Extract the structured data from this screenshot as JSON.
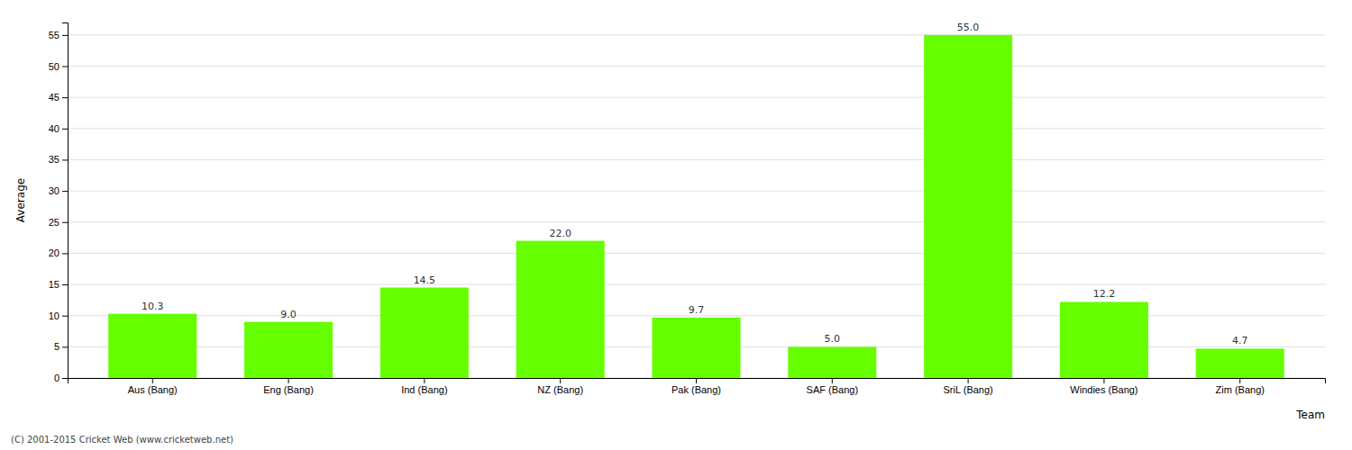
{
  "chart_data": {
    "type": "bar",
    "x_label": "Team",
    "y_label": "Average",
    "annotations": [
      "(C) 2001-2015 Cricket Web (www.cricketweb.net)"
    ],
    "categories": [
      "Aus (Bang)",
      "Eng (Bang)",
      "Ind (Bang)",
      "NZ (Bang)",
      "Pak (Bang)",
      "SAF (Bang)",
      "SriL (Bang)",
      "Windies (Bang)",
      "Zim (Bang)"
    ],
    "values": [
      10.3,
      9.0,
      14.5,
      22.0,
      9.7,
      5.0,
      55.0,
      12.2,
      4.7
    ],
    "value_labels": [
      "10.3",
      "9.0",
      "14.5",
      "22.0",
      "9.7",
      "5.0",
      "55.0",
      "12.2",
      "4.7"
    ],
    "color": "#66ff00",
    "ylim": [
      0,
      57
    ],
    "yticks": [
      0,
      5,
      10,
      15,
      20,
      25,
      30,
      35,
      40,
      45,
      50,
      55
    ],
    "grid": true,
    "data_labels": true
  }
}
